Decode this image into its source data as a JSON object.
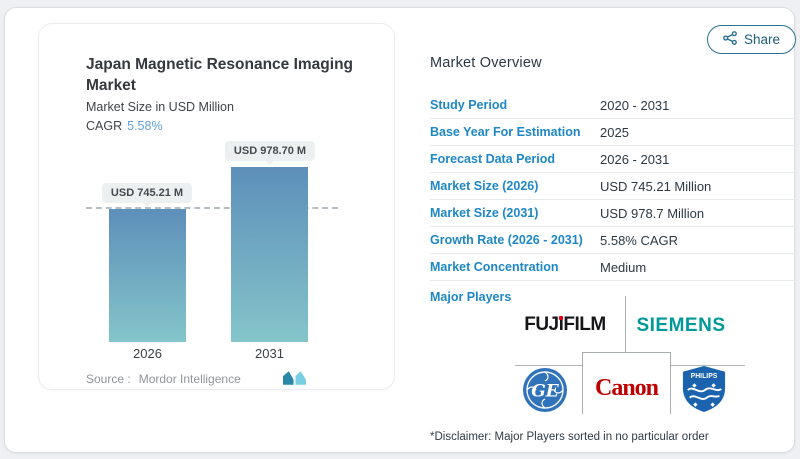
{
  "left_card": {
    "title": "Japan Magnetic Resonance Imaging Market",
    "subtitle": "Market Size in USD Million",
    "cagr_label": "CAGR",
    "cagr_value": "5.58%",
    "source_label": "Source :",
    "source_value": "Mordor Intelligence"
  },
  "chart_data": {
    "type": "bar",
    "title": "Japan Magnetic Resonance Imaging Market",
    "ylabel": "Market Size in USD Million",
    "categories": [
      "2026",
      "2031"
    ],
    "values": [
      745.21,
      978.7
    ],
    "bar_labels": [
      "USD 745.21 M",
      "USD 978.70 M"
    ],
    "reference_line": 745.21,
    "legend": "none",
    "grid": "off",
    "colors": {
      "bar_gradient_top": "#5d8fb9",
      "bar_gradient_bottom": "#84c5ca"
    }
  },
  "share_button": {
    "label": "Share"
  },
  "overview": {
    "heading": "Market Overview",
    "rows": [
      {
        "label": "Study Period",
        "value": "2020 - 2031"
      },
      {
        "label": "Base Year For Estimation",
        "value": "2025"
      },
      {
        "label": "Forecast Data Period",
        "value": "2026 - 2031"
      },
      {
        "label": "Market Size (2026)",
        "value": "USD 745.21 Million"
      },
      {
        "label": "Market Size (2031)",
        "value": "USD 978.7 Million"
      },
      {
        "label": "Growth Rate (2026 - 2031)",
        "value": "5.58% CAGR"
      },
      {
        "label": "Market Concentration",
        "value": "Medium"
      }
    ],
    "major_players_label": "Major Players",
    "major_players": [
      "FUJIFILM",
      "SIEMENS",
      "GE",
      "Canon",
      "PHILIPS"
    ],
    "disclaimer": "*Disclaimer: Major Players sorted in no particular order"
  },
  "logos": {
    "fujifilm_pre": "FUJ",
    "fujifilm_i": "ı",
    "fujifilm_post": "FILM",
    "siemens": "SIEMENS",
    "canon": "Canon",
    "ge": "GE",
    "philips": "PHILIPS"
  },
  "colors": {
    "label_blue": "#1e87c5",
    "cagr_blue": "#5f9fd6",
    "share_teal": "#2b7291",
    "siemens_teal": "#009999",
    "canon_red": "#c00000",
    "ge_blue": "#3173ba",
    "philips_blue": "#1b63ae",
    "fujifilm_dot_red": "#e60012"
  }
}
